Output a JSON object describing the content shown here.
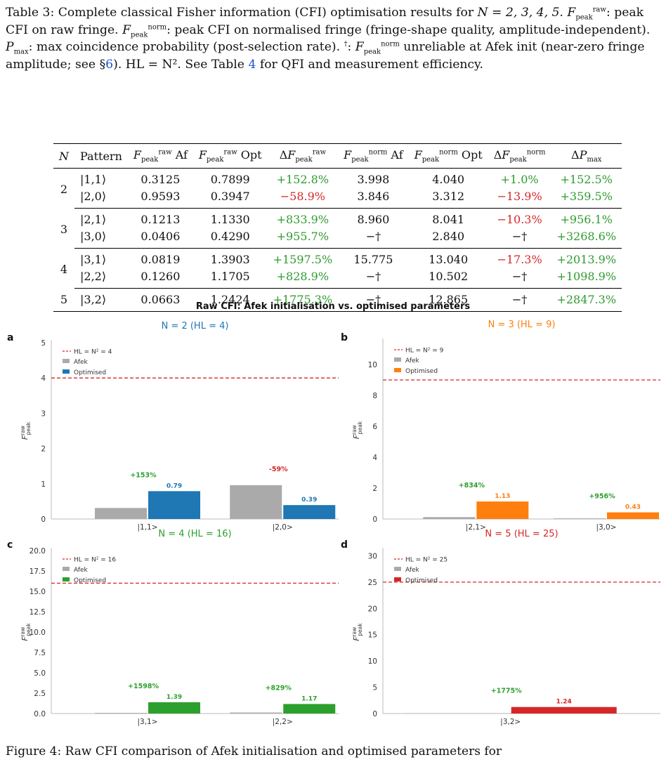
{
  "caption": {
    "lead": "Table 3: Complete classical Fisher information (CFI) optimisation results for",
    "n_values": "N = 2, 3, 4, 5.",
    "raw_def": ": peak CFI on raw fringe.",
    "norm_def": ": peak CFI on normalised fringe (fringe-shape quality, amplitude-independent).",
    "pmax_def": ": max coincidence probability (post-selection rate).",
    "dagger_def": "unreliable at Afek init (near-zero fringe amplitude; see §",
    "section_ref": "6",
    "hl_def": "). HL = N². See Table",
    "table_ref": "4",
    "tail": "for QFI and measurement efficiency."
  },
  "table": {
    "headers": [
      "N",
      "Pattern",
      "F_peak^raw Af",
      "F_peak^raw Opt",
      "ΔF_peak^raw",
      "F_peak^norm Af",
      "F_peak^norm Opt",
      "ΔF_peak^norm",
      "ΔP_max"
    ],
    "rows": [
      {
        "N": "2",
        "pattern": "|1,1⟩",
        "raw_af": "0.3125",
        "raw_opt": "0.7899",
        "d_raw": "+152.8%",
        "norm_af": "3.998",
        "norm_opt": "4.040",
        "d_norm": "+1.0%",
        "d_p": "+152.5%"
      },
      {
        "N": "",
        "pattern": "|2,0⟩",
        "raw_af": "0.9593",
        "raw_opt": "0.3947",
        "d_raw": "−58.9%",
        "norm_af": "3.846",
        "norm_opt": "3.312",
        "d_norm": "−13.9%",
        "d_p": "+359.5%"
      },
      {
        "N": "3",
        "pattern": "|2,1⟩",
        "raw_af": "0.1213",
        "raw_opt": "1.1330",
        "d_raw": "+833.9%",
        "norm_af": "8.960",
        "norm_opt": "8.041",
        "d_norm": "−10.3%",
        "d_p": "+956.1%"
      },
      {
        "N": "",
        "pattern": "|3,0⟩",
        "raw_af": "0.0406",
        "raw_opt": "0.4290",
        "d_raw": "+955.7%",
        "norm_af": "−†",
        "norm_opt": "2.840",
        "d_norm": "−†",
        "d_p": "+3268.6%"
      },
      {
        "N": "4",
        "pattern": "|3,1⟩",
        "raw_af": "0.0819",
        "raw_opt": "1.3903",
        "d_raw": "+1597.5%",
        "norm_af": "15.775",
        "norm_opt": "13.040",
        "d_norm": "−17.3%",
        "d_p": "+2013.9%"
      },
      {
        "N": "",
        "pattern": "|2,2⟩",
        "raw_af": "0.1260",
        "raw_opt": "1.1705",
        "d_raw": "+828.9%",
        "norm_af": "−†",
        "norm_opt": "10.502",
        "d_norm": "−†",
        "d_p": "+1098.9%"
      },
      {
        "N": "5",
        "pattern": "|3,2⟩",
        "raw_af": "0.0663",
        "raw_opt": "1.2424",
        "d_raw": "+1775.3%",
        "norm_af": "−†",
        "norm_opt": "12.865",
        "d_norm": "−†",
        "d_p": "+2847.3%"
      }
    ]
  },
  "figure_title": "Raw CFI: Afek initialisation vs. optimised parameters",
  "colors": {
    "afek": "#aaaaaa",
    "n2": "#1f77b4",
    "n3": "#ff7f0e",
    "n4": "#2ca02c",
    "n5": "#d62728",
    "hl": "#d62728"
  },
  "chart_data": [
    {
      "type": "bar",
      "panel": "a",
      "title": "N = 2  (HL = 4)",
      "ylabel": "F_peak^raw",
      "ylim": [
        0,
        5
      ],
      "yticks": [
        "0",
        "1",
        "2",
        "3",
        "4",
        "5"
      ],
      "categories": [
        "|1,1>",
        "|2,0>"
      ],
      "series": [
        {
          "name": "Afek",
          "values": [
            0.3125,
            0.9593
          ]
        },
        {
          "name": "Optimised",
          "values": [
            0.7899,
            0.3947
          ]
        }
      ],
      "hl": 4,
      "legend": [
        "HL = N² = 4",
        "Afek",
        "Optimised"
      ],
      "value_labels": [
        "0.79",
        "0.39"
      ],
      "pct_labels": [
        "+153%",
        "-59%"
      ]
    },
    {
      "type": "bar",
      "panel": "b",
      "title": "N = 3  (HL = 9)",
      "ylabel": "F_peak^raw",
      "ylim": [
        0,
        11.5
      ],
      "yticks": [
        "0",
        "2",
        "4",
        "6",
        "8",
        "10"
      ],
      "categories": [
        "|2,1>",
        "|3,0>"
      ],
      "series": [
        {
          "name": "Afek",
          "values": [
            0.1213,
            0.0406
          ]
        },
        {
          "name": "Optimised",
          "values": [
            1.133,
            0.429
          ]
        }
      ],
      "hl": 9,
      "legend": [
        "HL = N² = 9",
        "Afek",
        "Optimised"
      ],
      "value_labels": [
        "1.13",
        "0.43"
      ],
      "pct_labels": [
        "+834%",
        "+956%"
      ]
    },
    {
      "type": "bar",
      "panel": "c",
      "title": "N = 4  (HL = 16)",
      "ylabel": "F_peak^raw",
      "ylim": [
        0,
        20
      ],
      "yticks": [
        "0.0",
        "2.5",
        "5.0",
        "7.5",
        "10.0",
        "12.5",
        "15.0",
        "17.5",
        "20.0"
      ],
      "categories": [
        "|3,1>",
        "|2,2>"
      ],
      "series": [
        {
          "name": "Afek",
          "values": [
            0.0819,
            0.126
          ]
        },
        {
          "name": "Optimised",
          "values": [
            1.3903,
            1.1705
          ]
        }
      ],
      "hl": 16,
      "legend": [
        "HL = N² = 16",
        "Afek",
        "Optimised"
      ],
      "value_labels": [
        "1.39",
        "1.17"
      ],
      "pct_labels": [
        "+1598%",
        "+829%"
      ]
    },
    {
      "type": "bar",
      "panel": "d",
      "title": "N = 5  (HL = 25)",
      "ylabel": "F_peak^raw",
      "ylim": [
        0,
        31
      ],
      "yticks": [
        "0",
        "5",
        "10",
        "15",
        "20",
        "25",
        "30"
      ],
      "categories": [
        "|3,2>"
      ],
      "series": [
        {
          "name": "Afek",
          "values": [
            0.0663
          ]
        },
        {
          "name": "Optimised",
          "values": [
            1.2424
          ]
        }
      ],
      "hl": 25,
      "legend": [
        "HL = N² = 25",
        "Afek",
        "Optimised"
      ],
      "value_labels": [
        "1.24"
      ],
      "pct_labels": [
        "+1775%"
      ]
    }
  ],
  "footer_text": "Figure 4: Raw CFI comparison of Afek initialisation and optimised parameters for"
}
